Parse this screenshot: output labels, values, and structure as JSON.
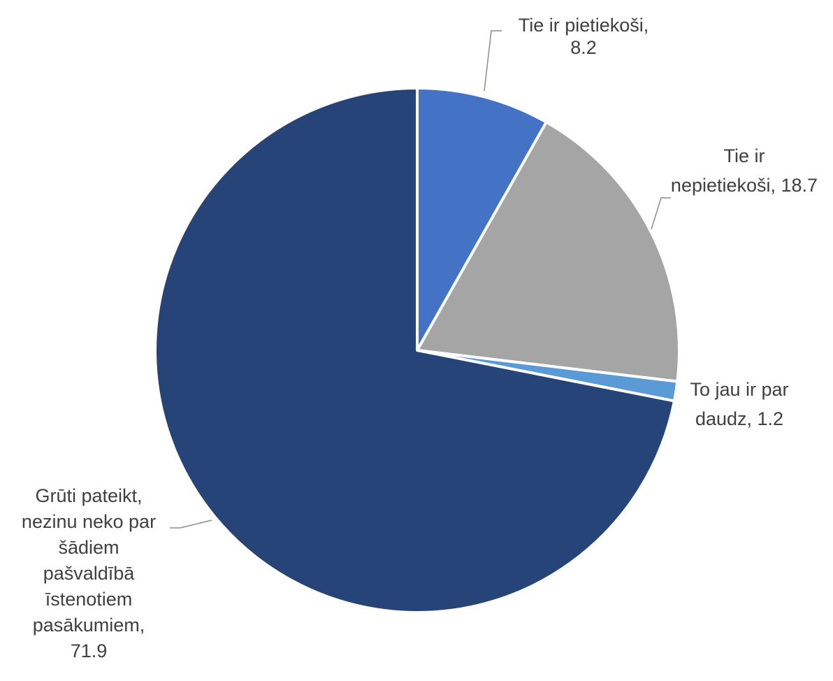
{
  "chart_data": {
    "type": "pie",
    "start_angle_deg": 0,
    "direction": "clockwise",
    "slices": [
      {
        "label": "Tie ir pietiekoši",
        "value": 8.2,
        "color": "#4472c4",
        "label_lines": [
          "Tie ir pietiekoši,",
          "8.2"
        ]
      },
      {
        "label": "Tie ir nepietiekoši",
        "value": 18.7,
        "color": "#a5a5a5",
        "label_lines": [
          "Tie ir",
          "nepietiekoši, 18.7"
        ]
      },
      {
        "label": "To jau ir par daudz",
        "value": 1.2,
        "color": "#5b9bd5",
        "label_lines": [
          "To jau ir par",
          "daudz, 1.2"
        ]
      },
      {
        "label": "Grūti pateikt, nezinu neko par šādiem pašvaldībā īstenotiem pasākumiem",
        "value": 71.9,
        "color": "#264478",
        "label_lines": [
          "Grūti pateikt,",
          "nezinu neko par",
          "šādiem",
          "pašvaldībā",
          "īstenotiem",
          "pasākumiem,",
          "71.9"
        ]
      }
    ],
    "legend": "none",
    "data_labels": "outside with leader lines"
  }
}
